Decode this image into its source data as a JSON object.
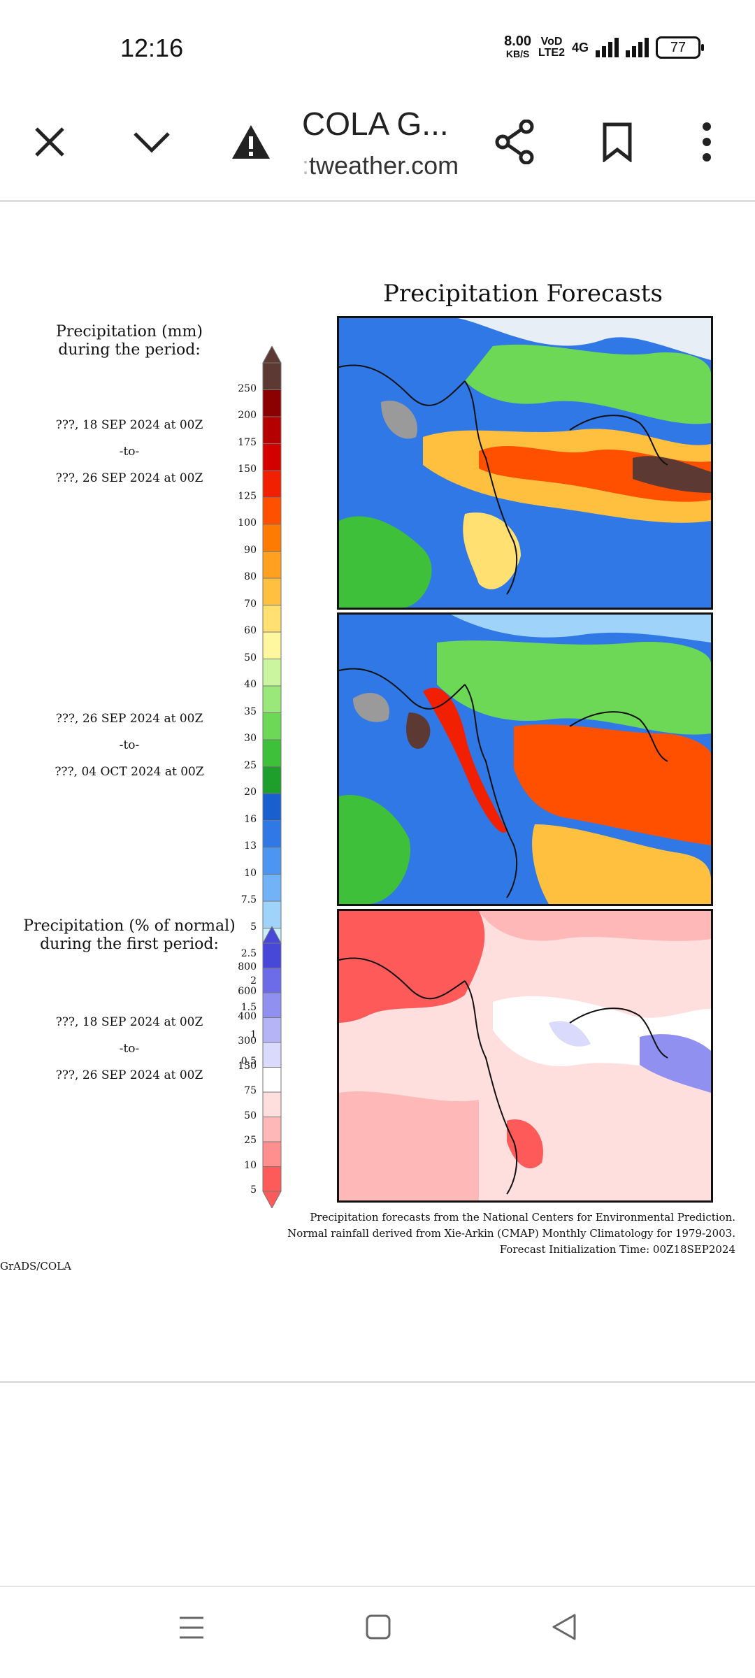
{
  "status": {
    "time": "12:16",
    "speed_value": "8.00",
    "speed_unit": "KB/S",
    "volte": "VoD",
    "lte": "LTE2",
    "network": "4G",
    "battery": "77"
  },
  "browser": {
    "title": "COLA G...",
    "url": "tweather.com",
    "url_faded_prefix": ":"
  },
  "chart": {
    "title": "Precipitation Forecasts",
    "legend1_heading_line1": "Precipitation (mm)",
    "legend1_heading_line2": "during the period:",
    "period1": {
      "start": "???, 18 SEP 2024 at 00Z",
      "sep": "-to-",
      "end": "???, 26 SEP 2024 at 00Z"
    },
    "period2": {
      "start": "???, 26 SEP 2024 at 00Z",
      "sep": "-to-",
      "end": "???, 04 OCT 2024 at 00Z"
    },
    "legend2_heading_line1": "Precipitation (% of normal)",
    "legend2_heading_line2": "during the first period:",
    "period3": {
      "start": "???, 18 SEP 2024 at 00Z",
      "sep": "-to-",
      "end": "???, 26 SEP 2024 at 00Z"
    },
    "footnote1": "Precipitation forecasts from the National Centers for Environmental Prediction.",
    "footnote2": "Normal rainfall derived from Xie-Arkin (CMAP) Monthly Climatology for 1979-2003.",
    "footnote3": "Forecast Initialization Time: 00Z18SEP2024",
    "credit": "GrADS/COLA"
  },
  "chart_data": [
    {
      "type": "heatmap",
      "title": "Precipitation Forecasts",
      "legend_label": "Precipitation (mm)",
      "levels": [
        "250",
        "200",
        "175",
        "150",
        "125",
        "100",
        "90",
        "80",
        "70",
        "60",
        "50",
        "40",
        "35",
        "30",
        "25",
        "20",
        "16",
        "13",
        "10",
        "7.5",
        "5",
        "2.5",
        "2",
        "1.5",
        "1",
        "0.5"
      ],
      "colors": [
        "#5c3a33",
        "#8b0000",
        "#b50000",
        "#d40000",
        "#f02000",
        "#ff5000",
        "#ff7a00",
        "#ffa020",
        "#ffc040",
        "#ffe070",
        "#fff6a0",
        "#ccf5a0",
        "#9be87a",
        "#6cd855",
        "#3fc03a",
        "#1e9e2a",
        "#1a5fd0",
        "#2f78e6",
        "#4c95f0",
        "#72b2f6",
        "#a0d3fa",
        "#c8eefc",
        "#7a7a7a",
        "#9a9a9a",
        "#b8b8b8",
        "#d8d8d8"
      ],
      "periods": [
        "???, 18 SEP 2024 at 00Z -to- ???, 26 SEP 2024 at 00Z",
        "???, 26 SEP 2024 at 00Z -to- ???, 04 OCT 2024 at 00Z"
      ]
    },
    {
      "type": "heatmap",
      "legend_label": "Precipitation (% of normal)",
      "levels": [
        "800",
        "600",
        "400",
        "300",
        "150",
        "75",
        "50",
        "25",
        "10",
        "5"
      ],
      "colors": [
        "#4848d8",
        "#6c6ce8",
        "#9090f0",
        "#b4b4f6",
        "#dadafc",
        "#ffffff",
        "#ffdede",
        "#ffb8b8",
        "#ff8e8e",
        "#ff5a5a"
      ],
      "period": "???, 18 SEP 2024 at 00Z -to- ???, 26 SEP 2024 at 00Z"
    }
  ]
}
